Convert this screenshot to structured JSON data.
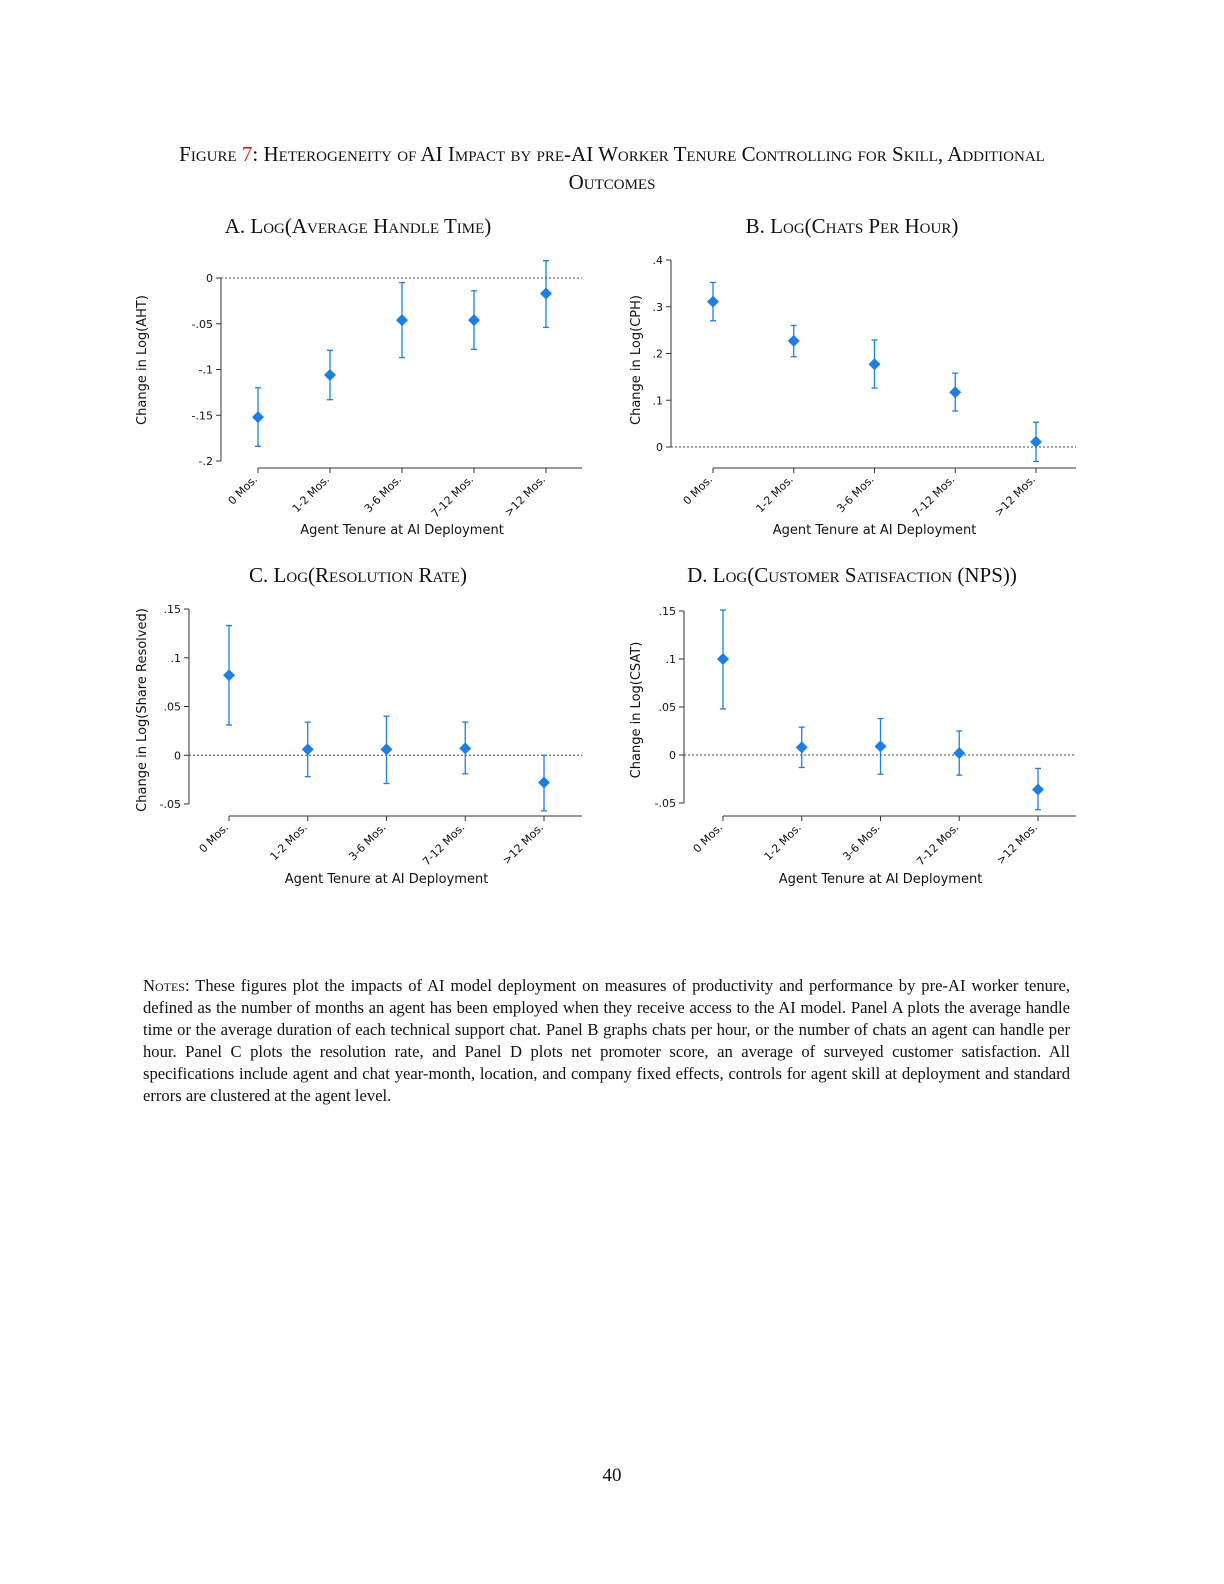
{
  "figure": {
    "label": "Figure",
    "number": "7",
    "title": "Heterogeneity of AI Impact by pre-AI Worker Tenure Controlling for Skill, Additional Outcomes"
  },
  "colors": {
    "marker": "#1f7fe0",
    "errorbar": "#1f7fe0",
    "axis": "#333333",
    "refline": "#444444"
  },
  "chart_data": [
    {
      "id": "A",
      "type": "scatter",
      "title": "A. Log(Average Handle Time)",
      "xlabel": "Agent Tenure at AI Deployment",
      "ylabel": "Change in Log(AHT)",
      "categories": [
        "0 Mos.",
        "1-2 Mos.",
        "3-6 Mos.",
        "7-12 Mos.",
        ">12 Mos."
      ],
      "values": [
        -0.152,
        -0.106,
        -0.046,
        -0.046,
        -0.017
      ],
      "ci_low": [
        -0.184,
        -0.133,
        -0.087,
        -0.078,
        -0.054
      ],
      "ci_high": [
        -0.12,
        -0.079,
        -0.005,
        -0.014,
        0.019
      ],
      "ylim": [
        -0.2,
        0
      ],
      "yticks": [
        0,
        -0.05,
        -0.1,
        -0.15,
        -0.2
      ],
      "ytick_labels": [
        "0",
        "-.05",
        "-.1",
        "-.15",
        "-.2"
      ],
      "reference_line": 0,
      "grid": false,
      "marker": "diamond"
    },
    {
      "id": "B",
      "type": "scatter",
      "title": "B. Log(Chats Per Hour)",
      "xlabel": "Agent Tenure at AI Deployment",
      "ylabel": "Change in Log(CPH)",
      "categories": [
        "0 Mos.",
        "1-2 Mos.",
        "3-6 Mos.",
        "7-12 Mos.",
        ">12 Mos."
      ],
      "values": [
        0.311,
        0.227,
        0.177,
        0.117,
        0.011
      ],
      "ci_low": [
        0.27,
        0.193,
        0.126,
        0.077,
        -0.031
      ],
      "ci_high": [
        0.352,
        0.26,
        0.229,
        0.158,
        0.053
      ],
      "ylim": [
        0,
        0.4
      ],
      "yticks": [
        0.4,
        0.3,
        0.2,
        0.1,
        0
      ],
      "ytick_labels": [
        ".4",
        ".3",
        ".2",
        ".1",
        "0"
      ],
      "reference_line": 0,
      "grid": false,
      "marker": "diamond"
    },
    {
      "id": "C",
      "type": "scatter",
      "title": "C. Log(Resolution Rate)",
      "xlabel": "Agent Tenure at AI Deployment",
      "ylabel": "Change in Log(Share Resolved)",
      "categories": [
        "0 Mos.",
        "1-2 Mos.",
        "3-6 Mos.",
        "7-12 Mos.",
        ">12 Mos."
      ],
      "values": [
        0.082,
        0.006,
        0.006,
        0.007,
        -0.028
      ],
      "ci_low": [
        0.031,
        -0.022,
        -0.029,
        -0.019,
        -0.057
      ],
      "ci_high": [
        0.133,
        0.034,
        0.04,
        0.034,
        0.0
      ],
      "ylim": [
        -0.05,
        0.15
      ],
      "yticks": [
        0.15,
        0.1,
        0.05,
        0,
        -0.05
      ],
      "ytick_labels": [
        ".15",
        ".1",
        ".05",
        "0",
        "-.05"
      ],
      "reference_line": 0,
      "grid": false,
      "marker": "diamond"
    },
    {
      "id": "D",
      "type": "scatter",
      "title": "D. Log(Customer Satisfaction (NPS))",
      "xlabel": "Agent Tenure at AI Deployment",
      "ylabel": "Change in Log(CSAT)",
      "categories": [
        "0 Mos.",
        "1-2 Mos.",
        "3-6 Mos.",
        "7-12 Mos.",
        ">12 Mos."
      ],
      "values": [
        0.1,
        0.008,
        0.009,
        0.002,
        -0.036
      ],
      "ci_low": [
        0.048,
        -0.013,
        -0.02,
        -0.021,
        -0.057
      ],
      "ci_high": [
        0.151,
        0.029,
        0.038,
        0.025,
        -0.014
      ],
      "ylim": [
        -0.05,
        0.15
      ],
      "yticks": [
        0.15,
        0.1,
        0.05,
        0,
        -0.05
      ],
      "ytick_labels": [
        ".15",
        ".1",
        ".05",
        "0",
        "-.05"
      ],
      "reference_line": 0,
      "grid": false,
      "marker": "diamond"
    }
  ],
  "notes": {
    "lead": "Notes:",
    "text": "These figures plot the impacts of AI model deployment on measures of productivity and performance by pre-AI worker tenure, defined as the number of months an agent has been employed when they receive access to the AI model. Panel A plots the average handle time or the average duration of each technical support chat. Panel B graphs chats per hour, or the number of chats an agent can handle per hour. Panel C plots the resolution rate, and Panel D plots net promoter score, an average of surveyed customer satisfaction. All specifications include agent and chat year-month, location, and company fixed effects, controls for agent skill at deployment and standard errors are clustered at the agent level."
  },
  "page_number": "40"
}
